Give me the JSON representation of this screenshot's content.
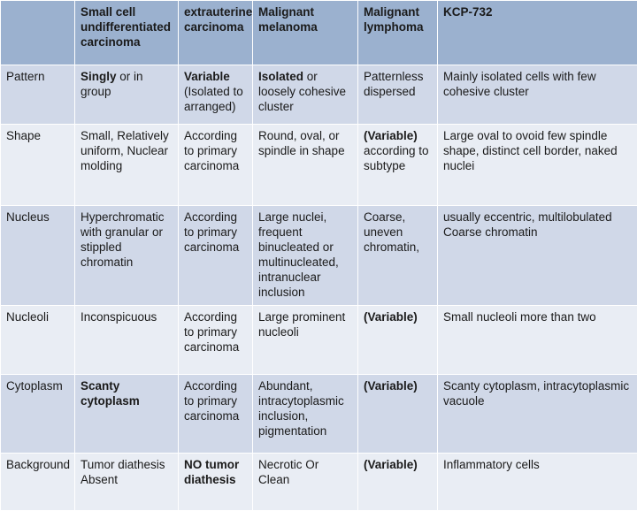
{
  "header": {
    "c0": "",
    "c1": "Small cell undifferentiated carcinoma",
    "c2": "extrauterine carcinoma",
    "c3": "Malignant melanoma",
    "c4": "Malignant lymphoma",
    "c5": "KCP-732"
  },
  "rows": [
    {
      "label": "Pattern",
      "c1_bold": "Singly",
      "c1": " or in group",
      "c2_bold": "Variable",
      "c2": " (Isolated to arranged)",
      "c3_bold": "Isolated",
      "c3": " or loosely cohesive cluster",
      "c4_bold": "",
      "c4": "Patternless dispersed",
      "c5": "Mainly isolated cells with few cohesive cluster"
    },
    {
      "label": "Shape",
      "c1_bold": "",
      "c1": "Small, Relatively uniform, Nuclear molding",
      "c2_bold": "",
      "c2": "According to primary carcinoma",
      "c3_bold": "",
      "c3": "Round, oval, or spindle in shape",
      "c4_bold": "(Variable)",
      "c4": " according to subtype",
      "c5": "Large oval to ovoid few spindle shape, distinct cell border, naked nuclei"
    },
    {
      "label": "Nucleus",
      "c1_bold": "",
      "c1": "Hyperchromatic with granular or stippled chromatin",
      "c2_bold": "",
      "c2": "According to primary carcinoma",
      "c3_bold": "",
      "c3": "Large nuclei, frequent binucleated or multinucleated, intranuclear inclusion",
      "c4_bold": "",
      "c4": "Coarse, uneven chromatin,",
      "c5": "usually eccentric, multilobulated Coarse chromatin"
    },
    {
      "label": "Nucleoli",
      "c1_bold": "",
      "c1": "Inconspicuous",
      "c2_bold": "",
      "c2": "According to primary carcinoma",
      "c3_bold": "",
      "c3": "Large prominent nucleoli",
      "c4_bold": "(Variable)",
      "c4": "",
      "c5": "Small nucleoli more than two"
    },
    {
      "label": "Cytoplasm",
      "c1_bold": "Scanty cytoplasm",
      "c1": "",
      "c2_bold": "",
      "c2": "According to primary carcinoma",
      "c3_bold": "",
      "c3": "Abundant, intracytoplasmic inclusion, pigmentation",
      "c4_bold": "(Variable)",
      "c4": "",
      "c5": "Scanty cytoplasm, intracytoplasmic vacuole"
    },
    {
      "label": "Background",
      "c1_bold": "",
      "c1": "Tumor diathesis Absent",
      "c2_bold": "NO tumor diathesis",
      "c2": "",
      "c3_bold": "",
      "c3": "Necrotic Or Clean",
      "c4_bold": "(Variable)",
      "c4": "",
      "c5": "Inflammatory cells"
    }
  ]
}
